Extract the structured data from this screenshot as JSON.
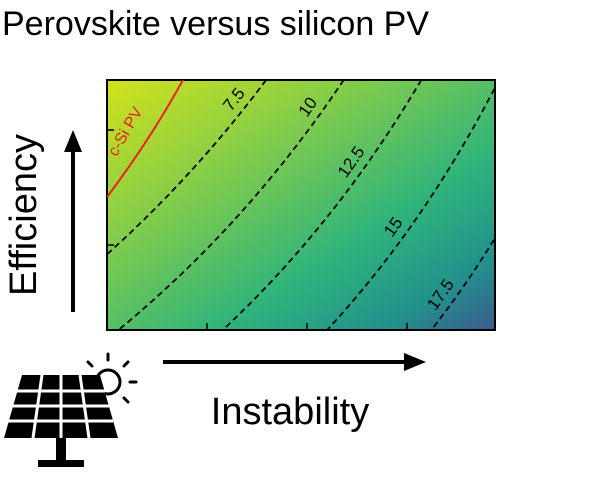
{
  "chart_data": {
    "type": "contour",
    "title": "Perovskite versus silicon PV",
    "x_label": "Instability",
    "y_label": "Efficiency",
    "levels": [
      7.5,
      10,
      12.5,
      15,
      17.5
    ],
    "line_color": "#000000",
    "reference_label": "c-Si PV",
    "reference_color": "#e8201a"
  }
}
